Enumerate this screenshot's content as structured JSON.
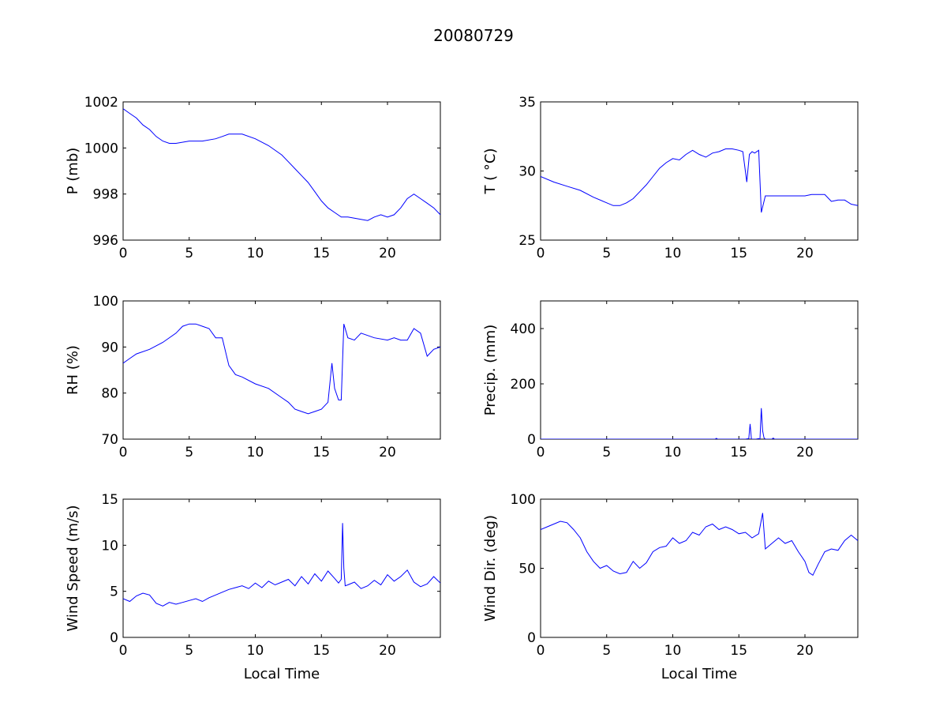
{
  "figure_title": "20080729",
  "colors": {
    "line": "#0000ff",
    "axes": "#000000",
    "background": "#ffffff"
  },
  "chart_data": [
    {
      "type": "line",
      "title": "",
      "xlabel": "",
      "ylabel": "P (mb)",
      "xlim": [
        0,
        24
      ],
      "ylim": [
        996,
        1002
      ],
      "xticks": [
        "0",
        "5",
        "10",
        "15",
        "20"
      ],
      "yticks": [
        "996",
        "998",
        "1000",
        "1002"
      ],
      "grid": false,
      "series": [
        {
          "x": [
            0,
            0.5,
            1,
            1.5,
            2,
            2.5,
            3,
            3.5,
            4,
            5,
            6,
            7,
            7.5,
            8,
            8.5,
            9,
            10,
            11,
            12,
            12.5,
            13,
            13.5,
            14,
            14.5,
            15,
            15.5,
            16,
            16.5,
            17,
            17.5,
            18,
            18.5,
            19,
            19.5,
            20,
            20.5,
            21,
            21.5,
            22,
            22.5,
            23,
            23.5,
            24
          ],
          "y": [
            1001.7,
            1001.5,
            1001.3,
            1001.0,
            1000.8,
            1000.5,
            1000.3,
            1000.2,
            1000.2,
            1000.3,
            1000.3,
            1000.4,
            1000.5,
            1000.6,
            1000.6,
            1000.6,
            1000.4,
            1000.1,
            999.7,
            999.4,
            999.1,
            998.8,
            998.5,
            998.1,
            997.7,
            997.4,
            997.2,
            997.0,
            997.0,
            996.95,
            996.9,
            996.85,
            997.0,
            997.1,
            997.0,
            997.1,
            997.4,
            997.8,
            998.0,
            997.8,
            997.6,
            997.4,
            997.1
          ]
        }
      ]
    },
    {
      "type": "line",
      "title": "",
      "xlabel": "",
      "ylabel": "T ( °C)",
      "xlim": [
        0,
        24
      ],
      "ylim": [
        25,
        35
      ],
      "xticks": [
        "0",
        "5",
        "10",
        "15",
        "20"
      ],
      "yticks": [
        "25",
        "30",
        "35"
      ],
      "grid": false,
      "series": [
        {
          "x": [
            0,
            1,
            2,
            3,
            4,
            5,
            5.5,
            6,
            6.5,
            7,
            7.5,
            8,
            8.5,
            9,
            9.5,
            10,
            10.5,
            11,
            11.5,
            12,
            12.5,
            13,
            13.5,
            14,
            14.5,
            15,
            15.3,
            15.6,
            15.8,
            16,
            16.2,
            16.5,
            16.7,
            17,
            18,
            19,
            20,
            20.5,
            21,
            21.5,
            22,
            22.5,
            23,
            23.5,
            24
          ],
          "y": [
            29.6,
            29.2,
            28.9,
            28.6,
            28.1,
            27.7,
            27.5,
            27.5,
            27.7,
            28.0,
            28.5,
            29.0,
            29.6,
            30.2,
            30.6,
            30.9,
            30.8,
            31.2,
            31.5,
            31.2,
            31.0,
            31.3,
            31.4,
            31.6,
            31.6,
            31.5,
            31.4,
            29.2,
            31.2,
            31.4,
            31.3,
            31.5,
            27.0,
            28.2,
            28.2,
            28.2,
            28.2,
            28.3,
            28.3,
            28.3,
            27.8,
            27.9,
            27.9,
            27.6,
            27.5
          ]
        }
      ]
    },
    {
      "type": "line",
      "title": "",
      "xlabel": "",
      "ylabel": "RH (%)",
      "xlim": [
        0,
        24
      ],
      "ylim": [
        70,
        100
      ],
      "xticks": [
        "0",
        "5",
        "10",
        "15",
        "20"
      ],
      "yticks": [
        "70",
        "80",
        "90",
        "100"
      ],
      "grid": false,
      "series": [
        {
          "x": [
            0,
            0.5,
            1,
            2,
            3,
            4,
            4.5,
            5,
            5.5,
            6,
            6.5,
            7,
            7.5,
            8,
            8.5,
            9,
            10,
            11,
            12,
            12.5,
            13,
            13.5,
            14,
            14.5,
            15,
            15.5,
            15.8,
            16,
            16.3,
            16.5,
            16.7,
            17,
            17.5,
            18,
            19,
            20,
            20.5,
            21,
            21.5,
            22,
            22.5,
            23,
            23.5,
            24
          ],
          "y": [
            86.5,
            87.5,
            88.5,
            89.5,
            91.0,
            93.0,
            94.5,
            95.0,
            95.0,
            94.5,
            94.0,
            92.0,
            92.0,
            86.0,
            84.0,
            83.5,
            82.0,
            81.0,
            79.0,
            78.0,
            76.5,
            76.0,
            75.5,
            76.0,
            76.5,
            78.0,
            86.5,
            81.0,
            78.5,
            78.5,
            95.0,
            92.0,
            91.5,
            93.0,
            92.0,
            91.5,
            92.0,
            91.5,
            91.5,
            94.0,
            93.0,
            88.0,
            89.5,
            90.0
          ]
        }
      ]
    },
    {
      "type": "line",
      "title": "",
      "xlabel": "",
      "ylabel": "Precip. (mm)",
      "xlim": [
        0,
        24
      ],
      "ylim": [
        0,
        500
      ],
      "xticks": [
        "0",
        "5",
        "10",
        "15",
        "20"
      ],
      "yticks": [
        "0",
        "200",
        "400"
      ],
      "grid": false,
      "series": [
        {
          "x": [
            0,
            13.2,
            13.3,
            13.4,
            15.5,
            15.75,
            15.85,
            15.95,
            16.3,
            16.5,
            16.6,
            16.7,
            16.8,
            16.9,
            17.0,
            17.5,
            17.6,
            17.7,
            18.0,
            24
          ],
          "y": [
            0,
            0,
            3,
            0,
            0,
            2,
            55,
            0,
            0,
            2,
            0,
            112,
            30,
            5,
            0,
            0,
            4,
            0,
            0,
            0
          ]
        }
      ]
    },
    {
      "type": "line",
      "title": "",
      "xlabel": "Local Time",
      "ylabel": "Wind Speed (m/s)",
      "xlim": [
        0,
        24
      ],
      "ylim": [
        0,
        15
      ],
      "xticks": [
        "0",
        "5",
        "10",
        "15",
        "20"
      ],
      "yticks": [
        "0",
        "5",
        "10",
        "15"
      ],
      "grid": false,
      "series": [
        {
          "x": [
            0,
            0.5,
            1,
            1.5,
            2,
            2.5,
            3,
            3.5,
            4,
            4.5,
            5,
            5.5,
            6,
            6.5,
            7,
            7.5,
            8,
            8.5,
            9,
            9.5,
            10,
            10.5,
            11,
            11.5,
            12,
            12.5,
            13,
            13.5,
            14,
            14.5,
            15,
            15.5,
            16,
            16.3,
            16.5,
            16.6,
            16.7,
            16.8,
            17,
            17.5,
            18,
            18.5,
            19,
            19.5,
            20,
            20.5,
            21,
            21.5,
            22,
            22.5,
            23,
            23.5,
            24
          ],
          "y": [
            4.2,
            3.9,
            4.5,
            4.8,
            4.6,
            3.7,
            3.4,
            3.8,
            3.6,
            3.8,
            4.0,
            4.2,
            3.9,
            4.3,
            4.6,
            4.9,
            5.2,
            5.4,
            5.6,
            5.3,
            5.9,
            5.4,
            6.1,
            5.7,
            6.0,
            6.3,
            5.6,
            6.6,
            5.8,
            6.9,
            6.1,
            7.2,
            6.4,
            5.9,
            6.3,
            12.4,
            7.5,
            5.6,
            5.7,
            6.0,
            5.3,
            5.6,
            6.2,
            5.7,
            6.8,
            6.1,
            6.6,
            7.3,
            6.0,
            5.5,
            5.8,
            6.6,
            5.9
          ]
        }
      ]
    },
    {
      "type": "line",
      "title": "",
      "xlabel": "Local Time",
      "ylabel": "Wind Dir. (deg)",
      "xlim": [
        0,
        24
      ],
      "ylim": [
        0,
        100
      ],
      "xticks": [
        "0",
        "5",
        "10",
        "15",
        "20"
      ],
      "yticks": [
        "0",
        "50",
        "100"
      ],
      "grid": false,
      "series": [
        {
          "x": [
            0,
            0.5,
            1,
            1.5,
            2,
            2.5,
            3,
            3.5,
            4,
            4.5,
            5,
            5.5,
            6,
            6.5,
            7,
            7.5,
            8,
            8.5,
            9,
            9.5,
            10,
            10.5,
            11,
            11.5,
            12,
            12.5,
            13,
            13.5,
            14,
            14.5,
            15,
            15.5,
            16,
            16.5,
            16.8,
            17,
            17.5,
            18,
            18.5,
            19,
            19.5,
            20,
            20.3,
            20.6,
            21,
            21.5,
            22,
            22.5,
            23,
            23.5,
            24
          ],
          "y": [
            78,
            80,
            82,
            84,
            83,
            78,
            72,
            62,
            55,
            50,
            52,
            48,
            46,
            47,
            55,
            50,
            54,
            62,
            65,
            66,
            72,
            68,
            70,
            76,
            74,
            80,
            82,
            78,
            80,
            78,
            75,
            76,
            72,
            75,
            90,
            64,
            68,
            72,
            68,
            70,
            62,
            55,
            47,
            45,
            53,
            62,
            64,
            63,
            70,
            74,
            70
          ]
        }
      ]
    }
  ]
}
